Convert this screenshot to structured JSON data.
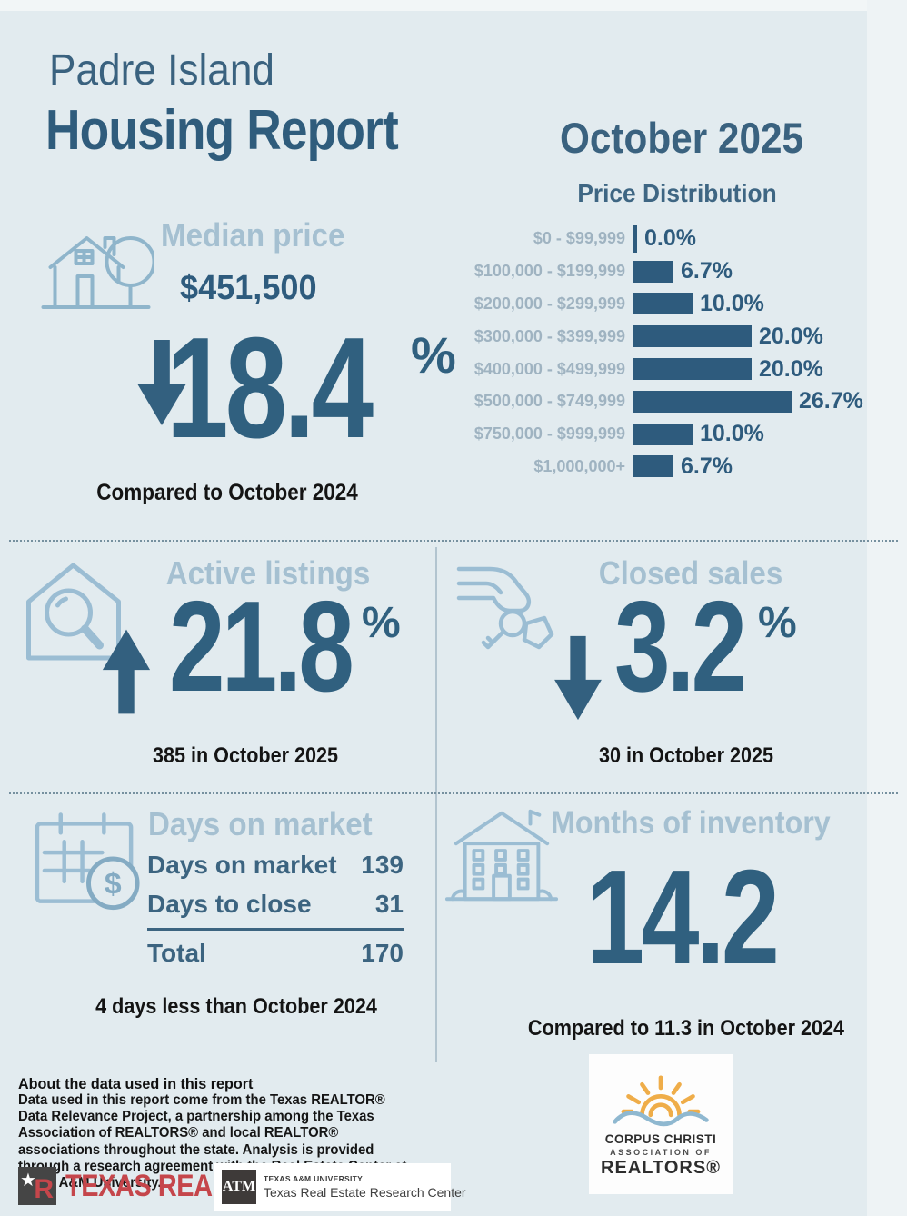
{
  "page": {
    "location": "Padre Island",
    "title": "Housing Report",
    "month": "October 2025"
  },
  "colors": {
    "background": "#e2ebef",
    "dark_blue": "#30607f",
    "light_blue_title": "#a5c0d1",
    "bar_color": "#2e5b7d",
    "black_text": "#141414",
    "texas_realtors_red": "#c5464b",
    "tamu_dark": "#3e3a39",
    "ccar_sun_orange": "#efad49",
    "ccar_wave_blue": "#8fb8d0"
  },
  "median_price": {
    "label": "Median price",
    "value": "$451,500",
    "change": "18.4",
    "unit": "%",
    "direction": "down",
    "note": "Compared to October 2024"
  },
  "chart_data": {
    "type": "bar",
    "orientation": "horizontal",
    "title": "Price Distribution",
    "categories": [
      "$0 - $99,999",
      "$100,000 - $199,999",
      "$200,000 - $299,999",
      "$300,000 - $399,999",
      "$400,000 - $499,999",
      "$500,000 - $749,999",
      "$750,000 - $999,999",
      "$1,000,000+"
    ],
    "values": [
      0.0,
      6.7,
      10.0,
      20.0,
      20.0,
      26.7,
      10.0,
      6.7
    ],
    "value_labels": [
      "0.0%",
      "6.7%",
      "10.0%",
      "20.0%",
      "20.0%",
      "26.7%",
      "10.0%",
      "6.7%"
    ],
    "xlim": [
      0,
      30
    ],
    "grid": false,
    "legend": "none"
  },
  "active_listings": {
    "label": "Active listings",
    "change": "21.8",
    "unit": "%",
    "direction": "up",
    "note": "385 in October 2025"
  },
  "closed_sales": {
    "label": "Closed sales",
    "change": "3.2",
    "unit": "%",
    "direction": "down",
    "note": "30 in October 2025"
  },
  "days_on_market": {
    "label": "Days on market",
    "rows": [
      {
        "label": "Days on market",
        "value": "139"
      },
      {
        "label": "Days to close",
        "value": "31"
      }
    ],
    "total_label": "Total",
    "total_value": "170",
    "note": "4 days less than October 2024"
  },
  "months_of_inventory": {
    "label": "Months of inventory",
    "value": "14.2",
    "note": "Compared to 11.3 in October 2024"
  },
  "about": {
    "heading": "About the data used in this report",
    "body": "Data used in this report come from the Texas REALTOR® Data Relevance Project, a partnership among the Texas Association of REALTORS® and local REALTOR® associations throughout the state. Analysis is provided through a research agreement with the Real Estate Center at Texas A&M University."
  },
  "icons": {
    "dollar_glyph": "$"
  },
  "logos": {
    "texas_realtors": "TEXAS REALTORS",
    "reg_mark": "®",
    "tamu_monogram": "ATM",
    "tamu_small": "TEXAS A&M UNIVERSITY",
    "trerc": "Texas Real Estate Research Center",
    "ccar_line1": "CORPUS CHRISTI",
    "ccar_line2": "ASSOCIATION OF",
    "ccar_line3": "REALTORS®"
  }
}
